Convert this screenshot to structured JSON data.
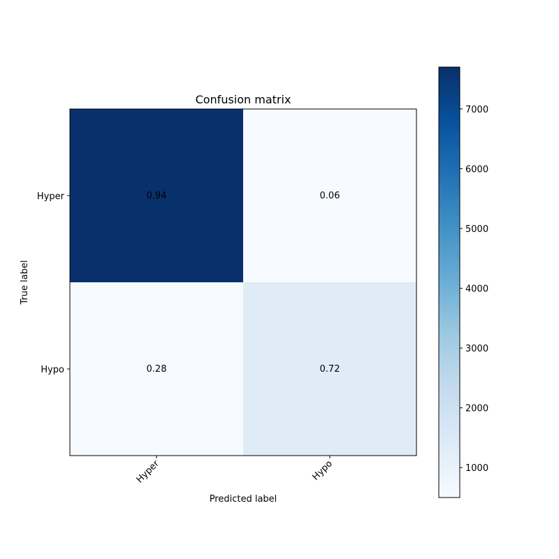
{
  "chart_data": {
    "type": "heatmap",
    "title": "Confusion matrix",
    "xlabel": "Predicted label",
    "ylabel": "True label",
    "x_categories": [
      "Hyper",
      "Hypo"
    ],
    "y_categories": [
      "Hyper",
      "Hypo"
    ],
    "values": [
      [
        0.94,
        0.06
      ],
      [
        0.28,
        0.72
      ]
    ],
    "cell_labels": [
      [
        "0.94",
        "0.06"
      ],
      [
        "0.28",
        "0.72"
      ]
    ],
    "cell_colors": [
      [
        "#08306b",
        "#f7fbff"
      ],
      [
        "#f7fbff",
        "#dfebf7"
      ]
    ],
    "colormap": "Blues",
    "colorbar": {
      "range": [
        500,
        7700
      ],
      "ticks": [
        1000,
        2000,
        3000,
        4000,
        5000,
        6000,
        7000
      ],
      "tick_labels": [
        "1000",
        "2000",
        "3000",
        "4000",
        "5000",
        "6000",
        "7000"
      ]
    },
    "x_tick_rotation": 45,
    "grid": false
  }
}
